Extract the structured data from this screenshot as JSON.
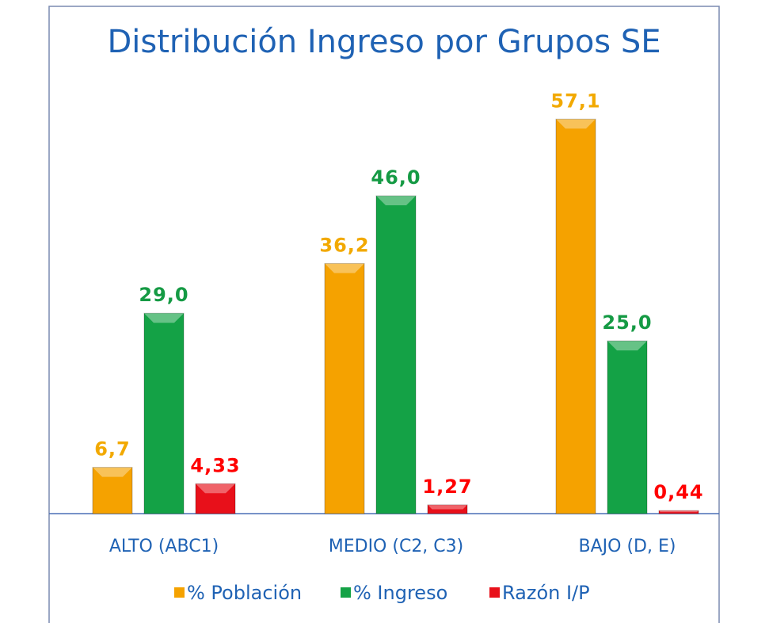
{
  "chart_data": {
    "type": "bar",
    "title": "Distribución Ingreso por Grupos SE",
    "categories": [
      "ALTO (ABC1)",
      "MEDIO (C2, C3)",
      "BAJO (D, E)"
    ],
    "series": [
      {
        "name": "% Población",
        "color": "#f5a200",
        "label_color": "#f2a900",
        "values": [
          6.7,
          36.2,
          57.1
        ],
        "value_labels": [
          "6,7",
          "36,2",
          "57,1"
        ]
      },
      {
        "name": "% Ingreso",
        "color": "#14a246",
        "label_color": "#159a44",
        "values": [
          29.0,
          46.0,
          25.0
        ],
        "value_labels": [
          "29,0",
          "46,0",
          "25,0"
        ]
      },
      {
        "name": "Razón I/P",
        "color": "#e8101a",
        "label_color": "#ff0000",
        "values": [
          4.33,
          1.27,
          0.44
        ],
        "value_labels": [
          "4,33",
          "1,27",
          "0,44"
        ]
      }
    ],
    "ylim": [
      0,
      60
    ],
    "legend": "bottom"
  }
}
